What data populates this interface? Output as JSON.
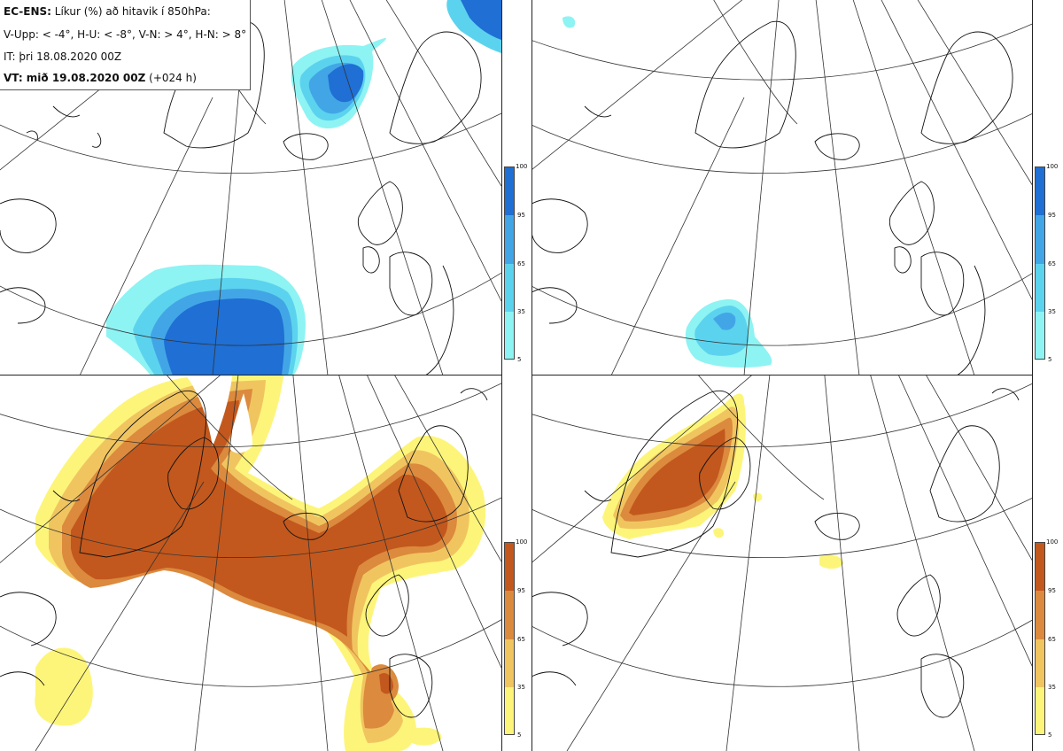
{
  "header": {
    "line1_bold": "EC-ENS:",
    "line1_rest": "Líkur (%) að hitavik í 850hPa:",
    "line2": "V-Upp: < -4°, H-U: < -8°, V-N: > 4°, H-N: > 8°",
    "line3": "IT: þri 18.08.2020 00Z",
    "line4_bold": "VT: mið 19.08.2020 00Z",
    "line4_rest": "(+024 h)"
  },
  "colorbar_ticks": [
    "5",
    "35",
    "65",
    "95",
    "100"
  ],
  "colors": {
    "cold": [
      "#8ef3f3",
      "#5cd3ee",
      "#42a6e6",
      "#1f6fd4"
    ],
    "warm": [
      "#fdf57a",
      "#f0c560",
      "#dc8a3d",
      "#c2581d"
    ],
    "coast": "#111111",
    "grid": "#333333"
  },
  "panels": [
    {
      "id": "top-left",
      "quantity": "V-Upp: < -4°",
      "palette": "cold"
    },
    {
      "id": "top-right",
      "quantity": "H-U: < -8°",
      "palette": "cold"
    },
    {
      "id": "bottom-left",
      "quantity": "V-N: > 4°",
      "palette": "warm"
    },
    {
      "id": "bottom-right",
      "quantity": "H-N: > 8°",
      "palette": "warm"
    }
  ]
}
